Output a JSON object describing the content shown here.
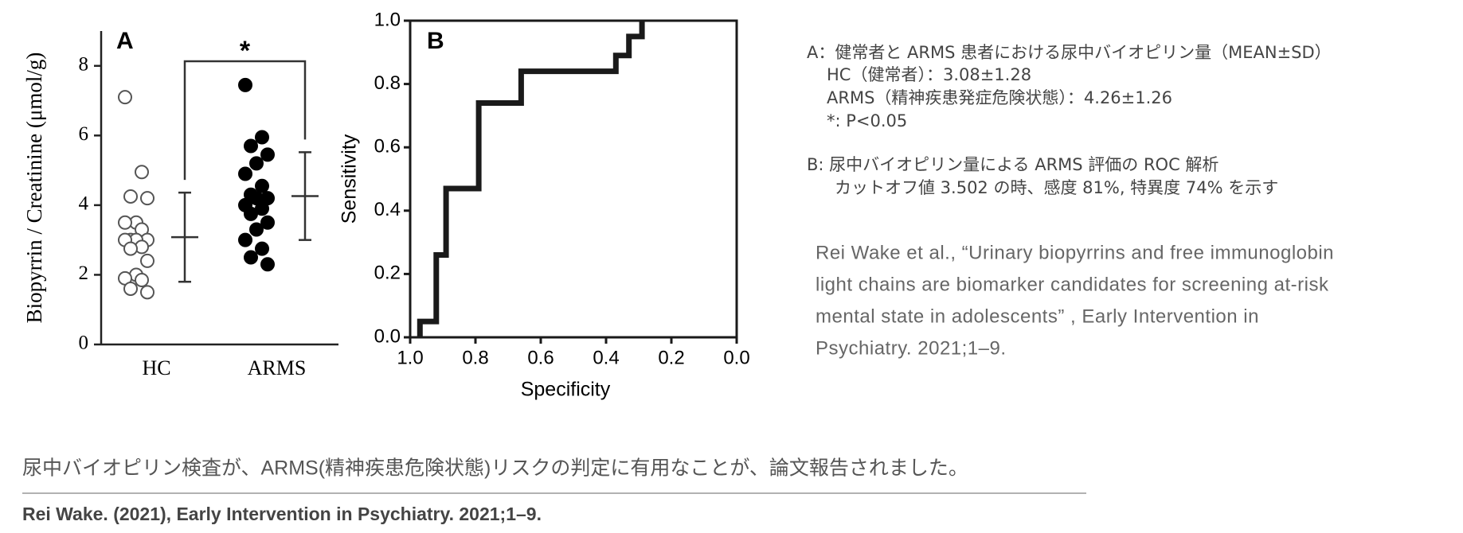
{
  "chart_data": [
    {
      "type": "strip",
      "panel": "A",
      "y_label": "Biopyrrin / Creatinine (μmol/g)",
      "categories": [
        "HC",
        "ARMS"
      ],
      "groups": [
        {
          "filled": false,
          "values": [
            7.1,
            4.95,
            4.25,
            4.2,
            3.5,
            3.5,
            3.3,
            3.0,
            3.0,
            3.0,
            3.0,
            2.8,
            2.75,
            2.4,
            2.0,
            1.9,
            1.85,
            1.6,
            1.5
          ],
          "mean": 3.08,
          "sd": 1.28
        },
        {
          "filled": true,
          "values": [
            7.45,
            5.95,
            5.7,
            5.45,
            5.2,
            4.9,
            4.55,
            4.3,
            4.2,
            4.2,
            4.0,
            3.9,
            3.75,
            3.5,
            3.3,
            3.0,
            2.75,
            2.5,
            2.3
          ],
          "mean": 4.26,
          "sd": 1.26
        }
      ],
      "annotation": "*",
      "ylim": [
        0,
        9
      ],
      "yticks": [
        0,
        2,
        4,
        6,
        8
      ]
    },
    {
      "type": "line",
      "panel": "B",
      "x_label": "Specificity",
      "y_label": "Sensitivity",
      "color": "#1a1a1a",
      "x": [
        0.97,
        0.97,
        0.92,
        0.92,
        0.89,
        0.89,
        0.79,
        0.79,
        0.66,
        0.66,
        0.37,
        0.37,
        0.33,
        0.33,
        0.29,
        0.29
      ],
      "values": [
        0,
        0.05,
        0.05,
        0.26,
        0.26,
        0.47,
        0.47,
        0.74,
        0.74,
        0.84,
        0.84,
        0.89,
        0.89,
        0.95,
        0.95,
        1.0
      ],
      "xlim": [
        1,
        0
      ],
      "xticks": [
        {
          "value": 1,
          "label": "1.0"
        },
        {
          "value": 0.8,
          "label": "0.8"
        },
        {
          "value": 0.6,
          "label": "0.6"
        },
        {
          "value": 0.4,
          "label": "0.4"
        },
        {
          "value": 0.2,
          "label": "0.2"
        },
        {
          "value": 0,
          "label": "0.0"
        }
      ],
      "ylim": [
        0,
        1
      ],
      "yticks": [
        {
          "value": 0,
          "label": "0.0"
        },
        {
          "value": 0.2,
          "label": "0.2"
        },
        {
          "value": 0.4,
          "label": "0.4"
        },
        {
          "value": 0.6,
          "label": "0.6"
        },
        {
          "value": 0.8,
          "label": "0.8"
        },
        {
          "value": 1,
          "label": "1.0"
        }
      ]
    }
  ],
  "notes": [
    "A：健常者と ARMS 患者における尿中バイオピリン量（MEAN±SD）",
    "HC（健常者）：3.08±1.28",
    "ARMS（精神疾患発症危険状態）：4.26±1.26",
    "*: P<0.05",
    "B: 尿中バイオピリン量による ARMS 評価の ROC 解析",
    "カットオフ値 3.502 の時、感度 81%, 特異度 74% を示す"
  ],
  "citation": [
    "Rei Wake et al., “Urinary biopyrrins and free immunoglobin",
    "light chains are biomarker candidates for screening at-risk",
    "mental state in adolescents” , Early Intervention in",
    "Psychiatry. 2021;1–9."
  ],
  "caption": "尿中バイオピリン検査が、ARMS(精神疾患危険状態)リスクの判定に有用なことが、論文報告されました。",
  "footer": "Rei Wake. (2021), Early Intervention in Psychiatry. 2021;1–9."
}
